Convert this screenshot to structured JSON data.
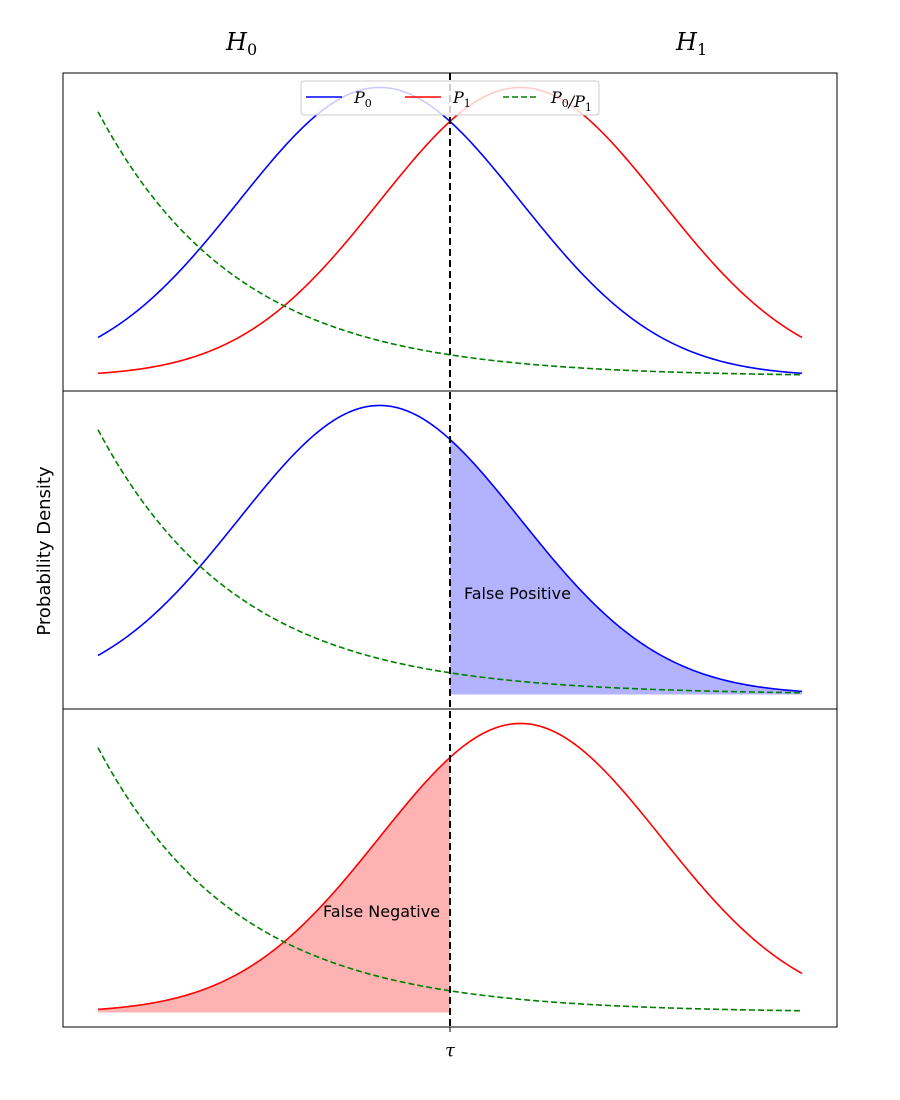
{
  "chart_data": {
    "type": "line",
    "ylabel": "Probability Density",
    "xtick": "τ",
    "column_labels": [
      {
        "symbol": "H",
        "sub": "0"
      },
      {
        "symbol": "H",
        "sub": "1"
      }
    ],
    "x_range": [
      -2.5,
      2.5
    ],
    "threshold": 0.0,
    "distributions": {
      "P0": {
        "mean": -0.5,
        "sd": 1.0
      },
      "P1": {
        "mean": 0.5,
        "sd": 1.0
      }
    },
    "ratio_curve": {
      "formula": "P0/P1",
      "display_scale": 0.03
    },
    "colors": {
      "P0": "#0000ff",
      "P1": "#ff0000",
      "ratio": "#008000",
      "threshold": "#000000",
      "fp_fill": "#b2b2ff",
      "fn_fill": "#ffb2b2"
    },
    "legend": {
      "placement": "upper center",
      "entries": [
        {
          "key": "P0",
          "style": "solid",
          "text": [
            {
              "t": "P",
              "sub": "0"
            }
          ]
        },
        {
          "key": "P1",
          "style": "solid",
          "text": [
            {
              "t": "P",
              "sub": "1"
            }
          ]
        },
        {
          "key": "ratio",
          "style": "dashed",
          "text": [
            {
              "t": "P",
              "sub": "0"
            },
            {
              "t": "/"
            },
            {
              "t": "P",
              "sub": "1"
            }
          ]
        }
      ]
    },
    "panels": [
      {
        "curves": [
          "P0",
          "P1",
          "ratio"
        ],
        "shade": null,
        "annotation": null,
        "legend": true
      },
      {
        "curves": [
          "P0",
          "ratio"
        ],
        "shade": "P0-right-of-threshold",
        "annotation": "False Positive",
        "legend": false
      },
      {
        "curves": [
          "P1",
          "ratio"
        ],
        "shade": "P1-left-of-threshold",
        "annotation": "False Negative",
        "legend": false
      }
    ]
  }
}
